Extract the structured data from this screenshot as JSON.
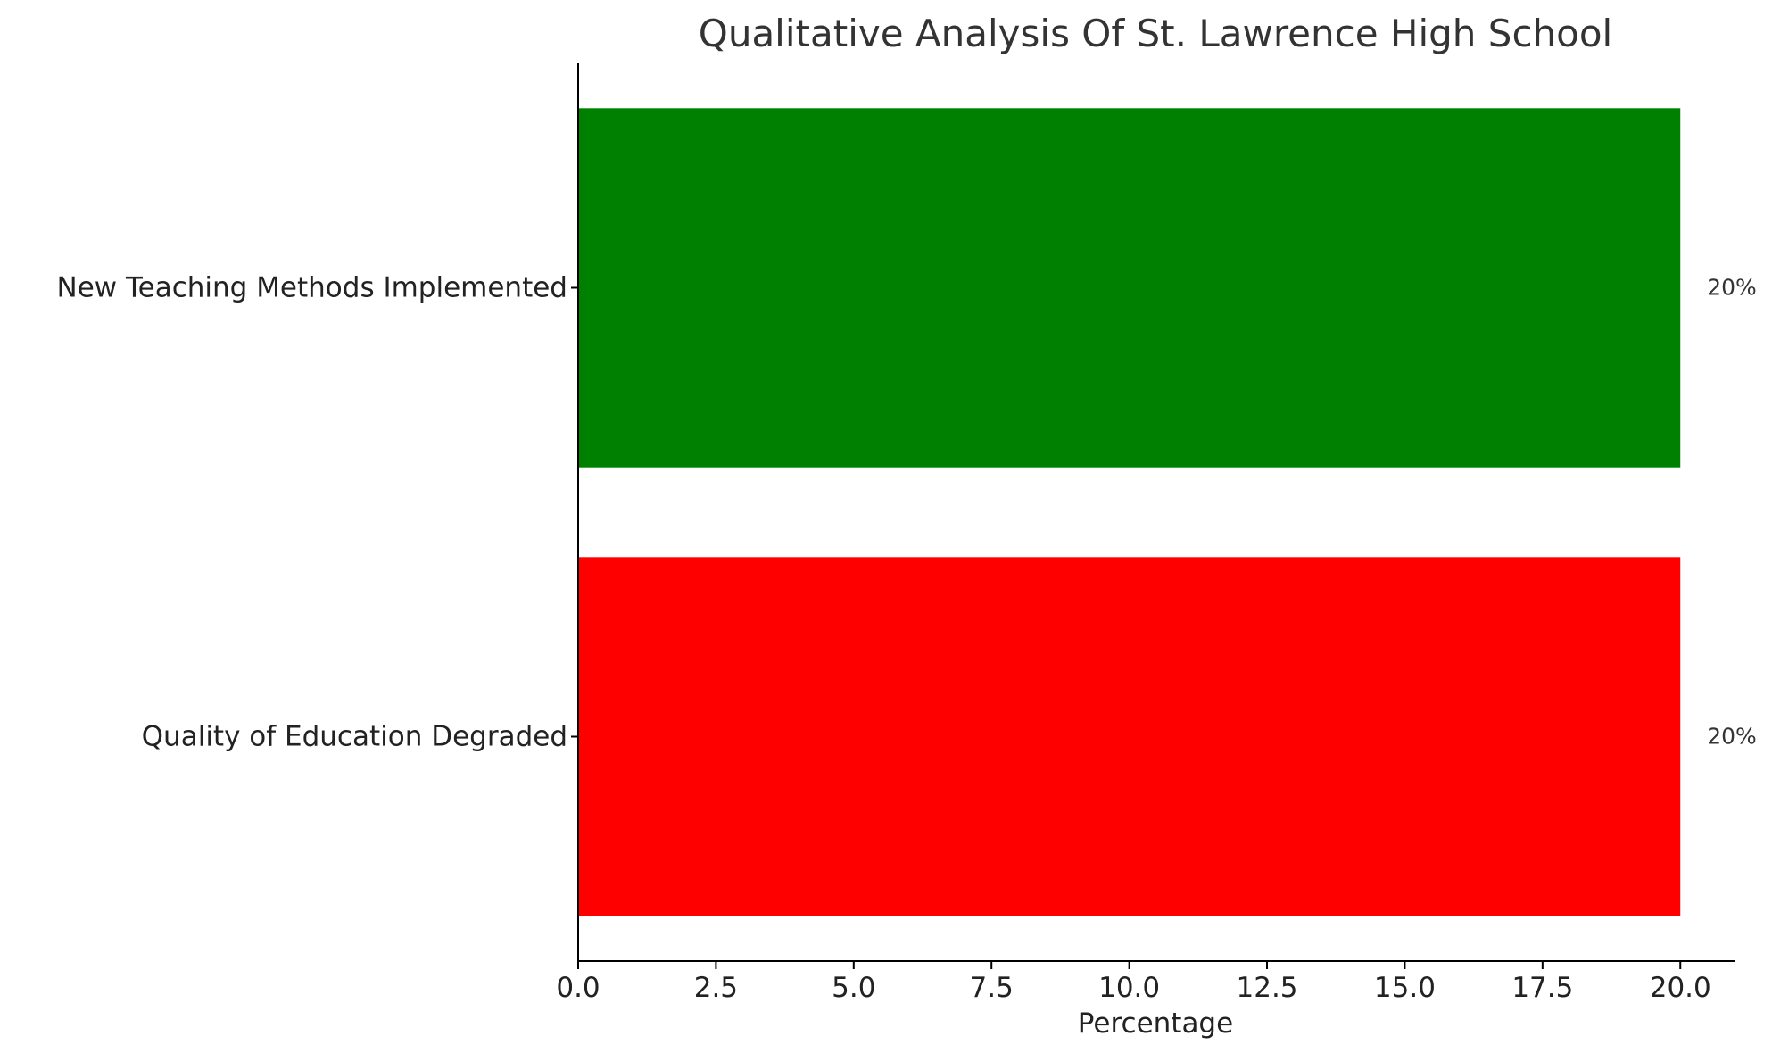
{
  "chart_data": {
    "type": "bar",
    "orientation": "horizontal",
    "title": "Qualitative Analysis Of St. Lawrence High School",
    "xlabel": "Percentage",
    "ylabel": "",
    "categories": [
      "Quality of Education Degraded",
      "New Teaching Methods Implemented"
    ],
    "values": [
      20,
      20
    ],
    "data_labels": [
      "20%",
      "20%"
    ],
    "colors": [
      "#ff0000",
      "#008000"
    ],
    "xlim": [
      0,
      21
    ],
    "xticks": [
      0,
      2.5,
      5,
      7.5,
      10,
      12.5,
      15,
      17.5,
      20
    ],
    "xtick_labels": [
      "0.0",
      "2.5",
      "5.0",
      "7.5",
      "10.0",
      "12.5",
      "15.0",
      "17.5",
      "20.0"
    ],
    "grid": false,
    "legend": "none"
  }
}
